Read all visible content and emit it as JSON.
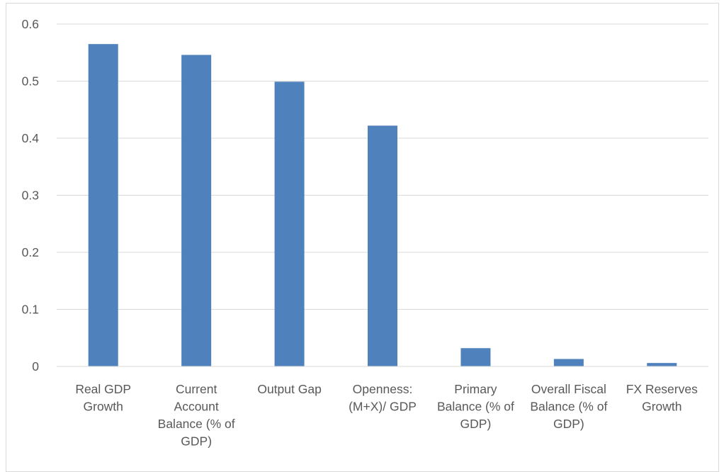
{
  "chart_data": {
    "type": "bar",
    "categories": [
      [
        "Real GDP",
        "Growth"
      ],
      [
        "Current",
        "Account",
        "Balance (% of",
        "GDP)"
      ],
      [
        "Output Gap"
      ],
      [
        "Openness:",
        "(M+X)/ GDP"
      ],
      [
        "Primary",
        "Balance (% of",
        "GDP)"
      ],
      [
        "Overall Fiscal",
        "Balance (% of",
        "GDP)"
      ],
      [
        "FX Reserves",
        "Growth"
      ]
    ],
    "values": [
      0.565,
      0.546,
      0.499,
      0.422,
      0.032,
      0.013,
      0.006
    ],
    "ylim": [
      0,
      0.6
    ],
    "yticks": [
      "0",
      "0.1",
      "0.2",
      "0.3",
      "0.4",
      "0.5",
      "0.6"
    ],
    "grid": true,
    "title": "",
    "xlabel": "",
    "ylabel": "",
    "bar_color": "#4f81bd",
    "grid_color": "#d9d9d9",
    "text_color": "#595959"
  }
}
